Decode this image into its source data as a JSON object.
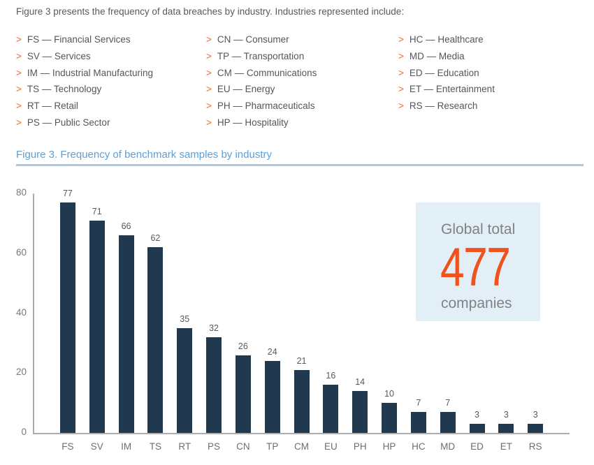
{
  "colors": {
    "accent_orange": "#F0521E",
    "chevron_orange": "#F2662F",
    "bar_navy": "#20394F",
    "title_blue": "#5C9FD6",
    "rule_blue": "#AAC8E8",
    "body_text": "#58595B",
    "axis_text": "#77787B",
    "axis_line": "#ABACAE",
    "callout_bg": "#E3EFF7",
    "callout_text": "#808285"
  },
  "intro": {
    "text": "Figure 3 presents the frequency of data breaches by industry. Industries represented include:"
  },
  "legend": {
    "bullet": ">",
    "columns": [
      [
        "FS — Financial Services",
        "SV — Services",
        "IM — Industrial Manufacturing",
        "TS — Technology",
        "RT — Retail",
        "PS — Public Sector"
      ],
      [
        "CN — Consumer",
        "TP — Transportation",
        "CM — Communications",
        "EU — Energy",
        "PH — Pharmaceuticals",
        "HP — Hospitality"
      ],
      [
        "HC — Healthcare",
        "MD — Media",
        "ED — Education",
        "ET — Entertainment",
        "RS — Research"
      ]
    ]
  },
  "figure": {
    "title": "Figure 3. Frequency of benchmark samples by industry"
  },
  "chart_data": {
    "type": "bar",
    "title": "Figure 3. Frequency of benchmark samples by industry",
    "categories": [
      "FS",
      "SV",
      "IM",
      "TS",
      "RT",
      "PS",
      "CN",
      "TP",
      "CM",
      "EU",
      "PH",
      "HP",
      "HC",
      "MD",
      "ED",
      "ET",
      "RS"
    ],
    "values": [
      77,
      71,
      66,
      62,
      35,
      32,
      26,
      24,
      21,
      16,
      14,
      10,
      7,
      7,
      3,
      3,
      3
    ],
    "xlabel": "",
    "ylabel": "",
    "ylim": [
      0,
      80
    ],
    "yticks": [
      0,
      20,
      40,
      60,
      80
    ],
    "grid": false,
    "legend_position": "none",
    "bar_color": "#20394F",
    "value_labels": true
  },
  "callout": {
    "top_label": "Global total",
    "value": "477",
    "bottom_label": "companies"
  }
}
